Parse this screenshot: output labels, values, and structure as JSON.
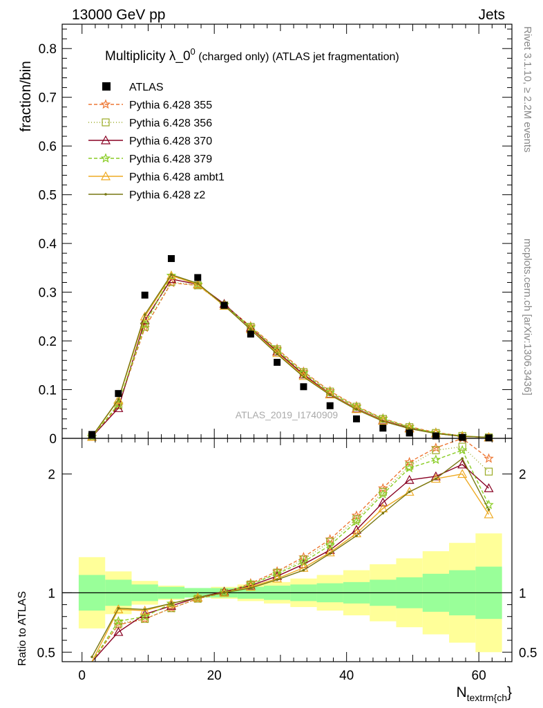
{
  "header": {
    "left": "13000 GeV pp",
    "right": "Jets"
  },
  "title": {
    "main": "Multiplicity λ_0",
    "sup": "0",
    "sub1": " (charged only)",
    "sub2": " (ATLAS jet fragmentation)"
  },
  "side_labels": {
    "top": "Rivet 3.1.10, ≥ 2.2M events",
    "bottom": "mcplots.cern.ch [arXiv:1306.3436]"
  },
  "watermark": "ATLAS_2019_I1740909",
  "chart_data": [
    {
      "type": "scatter",
      "ylabel": "fraction/bin",
      "xlim": [
        -3,
        65
      ],
      "ylim": [
        0,
        0.85
      ],
      "x_ticks": [
        0,
        20,
        40,
        60
      ],
      "y_ticks": [
        0,
        0.1,
        0.2,
        0.3,
        0.4,
        0.5,
        0.6,
        0.7,
        0.8
      ],
      "y_tick_labels": [
        "0",
        "0.1",
        "0.2",
        "0.3",
        "0.4",
        "0.5",
        "0.6",
        "0.7",
        "0.8"
      ],
      "x": [
        1.5,
        5.5,
        9.5,
        13.5,
        17.5,
        21.5,
        25.5,
        29.5,
        33.5,
        37.5,
        41.5,
        45.5,
        49.5,
        53.5,
        57.5,
        61.5
      ],
      "bin_edges": [
        -0.5,
        3.5,
        7.5,
        11.5,
        15.5,
        19.5,
        23.5,
        27.5,
        31.5,
        35.5,
        39.5,
        43.5,
        47.5,
        51.5,
        55.5,
        59.5,
        63.5
      ],
      "data": {
        "name": "ATLAS",
        "values": [
          0.008,
          0.092,
          0.294,
          0.369,
          0.33,
          0.273,
          0.214,
          0.156,
          0.106,
          0.067,
          0.04,
          0.021,
          0.011,
          0.005,
          0.002,
          0.001
        ]
      },
      "series": [
        {
          "name": "Pythia 6.428 355",
          "color": "#ee7733",
          "dash": "5,3",
          "marker": "star",
          "values": [
            0.003,
            0.067,
            0.227,
            0.319,
            0.314,
            0.274,
            0.23,
            0.184,
            0.137,
            0.097,
            0.066,
            0.041,
            0.024,
            0.012,
            0.005,
            0.002
          ]
        },
        {
          "name": "Pythia 6.428 356",
          "color": "#99aa22",
          "dash": "1,3",
          "marker": "square",
          "values": [
            0.003,
            0.068,
            0.229,
            0.321,
            0.314,
            0.273,
            0.229,
            0.183,
            0.136,
            0.096,
            0.065,
            0.04,
            0.023,
            0.011,
            0.005,
            0.002
          ]
        },
        {
          "name": "Pythia 6.428 370",
          "color": "#880022",
          "dash": "",
          "marker": "triangle",
          "values": [
            0.003,
            0.062,
            0.242,
            0.327,
            0.316,
            0.276,
            0.227,
            0.178,
            0.131,
            0.091,
            0.061,
            0.037,
            0.021,
            0.01,
            0.004,
            0.002
          ]
        },
        {
          "name": "Pythia 6.428 379",
          "color": "#88cc22",
          "dash": "5,3",
          "marker": "star",
          "values": [
            0.003,
            0.07,
            0.234,
            0.334,
            0.316,
            0.274,
            0.228,
            0.181,
            0.134,
            0.094,
            0.064,
            0.04,
            0.023,
            0.011,
            0.005,
            0.002
          ]
        },
        {
          "name": "Pythia 6.428 ambt1",
          "color": "#eeaa22",
          "dash": "",
          "marker": "triangle-open",
          "values": [
            0.003,
            0.079,
            0.25,
            0.334,
            0.316,
            0.272,
            0.224,
            0.175,
            0.128,
            0.09,
            0.06,
            0.036,
            0.02,
            0.01,
            0.004,
            0.002
          ]
        },
        {
          "name": "Pythia 6.428 z2",
          "color": "#777711",
          "dash": "",
          "marker": "dot",
          "values": [
            0.004,
            0.08,
            0.254,
            0.336,
            0.318,
            0.273,
            0.223,
            0.173,
            0.126,
            0.089,
            0.059,
            0.035,
            0.02,
            0.01,
            0.004,
            0.002
          ]
        }
      ]
    },
    {
      "type": "line",
      "ylabel": "Ratio to ATLAS",
      "xlabel": "N",
      "xlabel_sub": "textrm{ch",
      "xlabel_suffix": "}",
      "ylim": [
        0.42,
        2.3
      ],
      "y_ticks": [
        0.5,
        1,
        2
      ],
      "y_tick_labels": [
        "0.5",
        "1",
        "2"
      ],
      "x_tick_labels": [
        "0",
        "20",
        "40",
        "60"
      ],
      "band_inner": [
        0.15,
        0.11,
        0.07,
        0.05,
        0.04,
        0.04,
        0.05,
        0.06,
        0.07,
        0.08,
        0.09,
        0.11,
        0.13,
        0.16,
        0.19,
        0.22
      ],
      "band_outer": [
        0.3,
        0.18,
        0.1,
        0.06,
        0.04,
        0.05,
        0.07,
        0.09,
        0.12,
        0.15,
        0.19,
        0.24,
        0.29,
        0.35,
        0.42,
        0.5
      ],
      "series": [
        {
          "name": "Pythia 6.428 355",
          "values": [
            0.38,
            0.73,
            0.78,
            0.87,
            0.95,
            1.0,
            1.08,
            1.18,
            1.3,
            1.45,
            1.65,
            1.88,
            2.1,
            2.22,
            2.3,
            2.13
          ]
        },
        {
          "name": "Pythia 6.428 356",
          "values": [
            0.38,
            0.74,
            0.78,
            0.87,
            0.95,
            1.0,
            1.07,
            1.17,
            1.28,
            1.43,
            1.62,
            1.85,
            2.07,
            2.2,
            2.23,
            2.02
          ]
        },
        {
          "name": "Pythia 6.428 370",
          "values": [
            0.38,
            0.67,
            0.82,
            0.89,
            0.96,
            1.01,
            1.06,
            1.14,
            1.24,
            1.36,
            1.53,
            1.76,
            1.95,
            1.98,
            2.08,
            1.88
          ]
        },
        {
          "name": "Pythia 6.428 379",
          "values": [
            0.38,
            0.76,
            0.8,
            0.91,
            0.96,
            1.0,
            1.07,
            1.16,
            1.26,
            1.4,
            1.6,
            1.83,
            2.05,
            2.12,
            2.2,
            1.74
          ]
        },
        {
          "name": "Pythia 6.428 ambt1",
          "values": [
            0.38,
            0.86,
            0.85,
            0.91,
            0.96,
            1.0,
            1.05,
            1.12,
            1.21,
            1.34,
            1.5,
            1.71,
            1.85,
            1.96,
            2.0,
            1.66
          ]
        },
        {
          "name": "Pythia 6.428 z2",
          "values": [
            0.46,
            0.87,
            0.86,
            0.91,
            0.96,
            1.0,
            1.04,
            1.11,
            1.19,
            1.33,
            1.48,
            1.67,
            1.85,
            1.96,
            2.13,
            1.7
          ]
        }
      ]
    }
  ]
}
